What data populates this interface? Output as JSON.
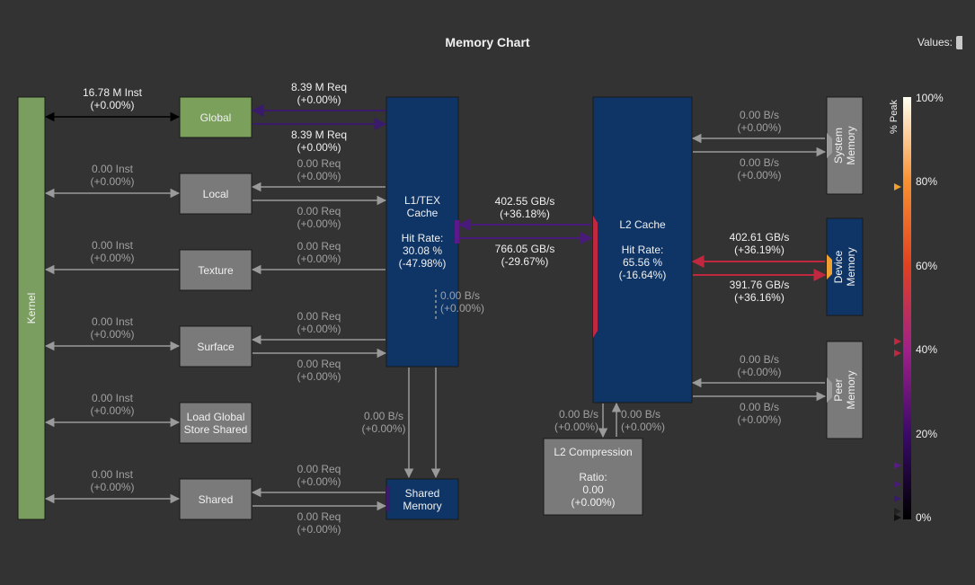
{
  "title": "Memory Chart",
  "values_label": "Values:",
  "colors": {
    "background": "#333333",
    "kernel": "#7a9e5f",
    "global": "#7aa05c",
    "unit_gray": "#7a7a7a",
    "cache_blue": "#0e3566",
    "dim_text": "#a0a0a0",
    "bright_text": "#f0f0f0",
    "global_arrow": "#3a1a6a",
    "l1_l2_arrow": "#4a1a7a",
    "device_arrow": "#c02840",
    "device_port": "#f0a030"
  },
  "kernel": {
    "label": "Kernel"
  },
  "units": [
    {
      "id": "global",
      "label": "Global"
    },
    {
      "id": "local",
      "label": "Local"
    },
    {
      "id": "texture",
      "label": "Texture"
    },
    {
      "id": "surface",
      "label": "Surface"
    },
    {
      "id": "lgss",
      "label": "Load Global Store Shared"
    },
    {
      "id": "shared",
      "label": "Shared"
    }
  ],
  "kernel_links": [
    {
      "id": "global",
      "value": "16.78 M Inst",
      "delta": "(+0.00%)"
    },
    {
      "id": "local",
      "value": "0.00 Inst",
      "delta": "(+0.00%)"
    },
    {
      "id": "texture",
      "value": "0.00 Inst",
      "delta": "(+0.00%)"
    },
    {
      "id": "surface",
      "value": "0.00 Inst",
      "delta": "(+0.00%)"
    },
    {
      "id": "lgss",
      "value": "0.00 Inst",
      "delta": "(+0.00%)"
    },
    {
      "id": "shared",
      "value": "0.00 Inst",
      "delta": "(+0.00%)"
    }
  ],
  "l1_links": [
    {
      "id": "global_in",
      "value": "8.39 M Req",
      "delta": "(+0.00%)"
    },
    {
      "id": "global_out",
      "value": "8.39 M Req",
      "delta": "(+0.00%)"
    },
    {
      "id": "local_in",
      "value": "0.00 Req",
      "delta": "(+0.00%)"
    },
    {
      "id": "local_out",
      "value": "0.00 Req",
      "delta": "(+0.00%)"
    },
    {
      "id": "texture_in",
      "value": "0.00 Req",
      "delta": "(+0.00%)"
    },
    {
      "id": "surface_in",
      "value": "0.00 Req",
      "delta": "(+0.00%)"
    },
    {
      "id": "surface_out",
      "value": "0.00 Req",
      "delta": "(+0.00%)"
    },
    {
      "id": "shared_in",
      "value": "0.00 Req",
      "delta": "(+0.00%)"
    },
    {
      "id": "shared_out",
      "value": "0.00 Req",
      "delta": "(+0.00%)"
    }
  ],
  "l1_cache": {
    "title_line1": "L1/TEX",
    "title_line2": "Cache",
    "hit_label": "Hit Rate:",
    "hit_value": "30.08 %",
    "hit_delta": "(-47.98%)"
  },
  "l1_shared_link": {
    "value": "0.00 B/s",
    "delta": "(+0.00%)"
  },
  "shared_memory": {
    "line1": "Shared",
    "line2": "Memory"
  },
  "l1_to_shared_label": {
    "value": "0.00 B/s",
    "delta": "(+0.00%)"
  },
  "l1_l2": {
    "to_l1": {
      "value": "402.55 GB/s",
      "delta": "(+36.18%)"
    },
    "to_l2": {
      "value": "766.05 GB/s",
      "delta": "(-29.67%)"
    }
  },
  "l2_cache": {
    "title": "L2 Cache",
    "hit_label": "Hit Rate:",
    "hit_value": "65.56 %",
    "hit_delta": "(-16.64%)"
  },
  "l2_compression": {
    "title": "L2 Compression",
    "ratio_label": "Ratio:",
    "ratio_value": "0.00",
    "ratio_delta": "(+0.00%)",
    "in": {
      "value": "0.00 B/s",
      "delta": "(+0.00%)"
    },
    "out": {
      "value": "0.00 B/s",
      "delta": "(+0.00%)"
    }
  },
  "system_memory": {
    "line1": "System",
    "line2": "Memory",
    "in": {
      "value": "0.00 B/s",
      "delta": "(+0.00%)"
    },
    "out": {
      "value": "0.00 B/s",
      "delta": "(+0.00%)"
    }
  },
  "device_memory": {
    "line1": "Device",
    "line2": "Memory",
    "in": {
      "value": "402.61 GB/s",
      "delta": "(+36.19%)"
    },
    "out": {
      "value": "391.76 GB/s",
      "delta": "(+36.16%)"
    }
  },
  "peer_memory": {
    "line1": "Peer",
    "line2": "Memory",
    "in": {
      "value": "0.00 B/s",
      "delta": "(+0.00%)"
    },
    "out": {
      "value": "0.00 B/s",
      "delta": "(+0.00%)"
    }
  },
  "legend": {
    "title": "% Peak",
    "ticks": [
      "100%",
      "80%",
      "60%",
      "40%",
      "20%",
      "0%"
    ]
  }
}
